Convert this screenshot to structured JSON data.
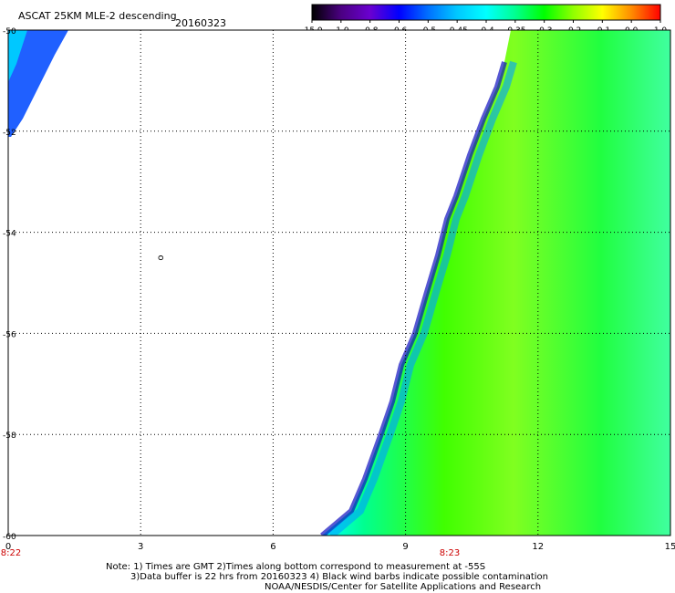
{
  "header": {
    "title": "ASCAT 25KM MLE-2 descending",
    "date": "20160323"
  },
  "colorbar": {
    "labels": [
      "-15.0",
      "-1.0",
      "-0.8",
      "-0.6",
      "-0.5",
      "-0.45",
      "-0.4",
      "-0.35",
      "-0.3",
      "-0.2",
      "-0.1",
      "0.0",
      "1.0"
    ],
    "colors": [
      "#000000",
      "#4b0082",
      "#6a00d0",
      "#0000ff",
      "#0070ff",
      "#00c8ff",
      "#00ffff",
      "#00ff90",
      "#00ff00",
      "#90ff00",
      "#ffff00",
      "#ff8c00",
      "#ff0000"
    ]
  },
  "map": {
    "lon_range": [
      0,
      15
    ],
    "lat_range": [
      -50,
      -60
    ],
    "x_ticks": [
      "0",
      "3",
      "6",
      "9",
      "12",
      "15"
    ],
    "y_ticks": [
      "-50",
      "-52",
      "-54",
      "-56",
      "-58",
      "-60"
    ],
    "time_labels": [
      "8:22",
      "8:23"
    ],
    "time_label_lons": [
      0,
      10
    ],
    "time_color": "#cc0000",
    "marker": "o",
    "marker_lon": 3.4,
    "marker_lat": -54.45,
    "grid": "dotted"
  },
  "footer": {
    "line1": "Note: 1) Times are GMT 2)Times along bottom correspond to measurement at -55S",
    "line2": "3)Data buffer is 22 hrs from 20160323 4) Black wind barbs indicate possible contamination",
    "line3": "NOAA/NESDIS/Center for Satellite Applications and Research"
  }
}
